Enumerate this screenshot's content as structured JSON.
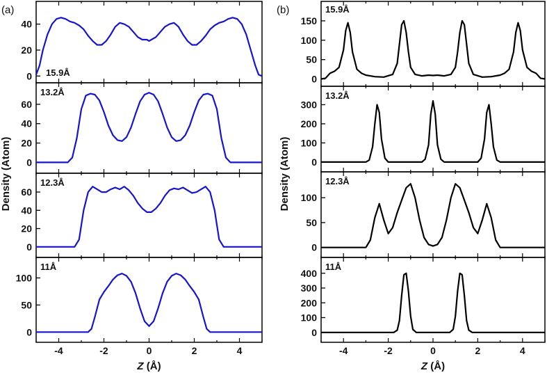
{
  "chart_data": [
    {
      "type": "line",
      "figure_label": "(a)",
      "xlabel_italic": "Z",
      "xlabel_rest": " (Å)",
      "ylabel": "Density (Atom)",
      "color": "#1414d2",
      "xlim": [
        -5,
        5
      ],
      "xticks": [
        "-4",
        "-2",
        "0",
        "2",
        "4"
      ],
      "panels": [
        {
          "label": "15.9Å",
          "ylim": [
            -2,
            50
          ],
          "yticks": [
            "0",
            "20",
            "40"
          ],
          "x": [
            -5,
            -4.85,
            -4.7,
            -4.5,
            -4.3,
            -4.1,
            -3.9,
            -3.7,
            -3.5,
            -3.3,
            -3.1,
            -2.9,
            -2.7,
            -2.5,
            -2.3,
            -2.1,
            -1.9,
            -1.7,
            -1.5,
            -1.3,
            -1.1,
            -0.9,
            -0.7,
            -0.5,
            -0.3,
            -0.1,
            0,
            0.1,
            0.3,
            0.5,
            0.7,
            0.9,
            1.1,
            1.3,
            1.5,
            1.7,
            1.9,
            2.1,
            2.3,
            2.5,
            2.7,
            2.9,
            3.1,
            3.3,
            3.5,
            3.7,
            3.9,
            4.1,
            4.3,
            4.5,
            4.7,
            4.85,
            5
          ],
          "y": [
            1,
            8,
            20,
            32,
            40,
            44,
            45,
            44,
            42,
            41,
            39,
            36,
            31,
            27,
            24,
            24,
            27,
            32,
            38,
            41,
            40,
            38,
            34,
            30,
            28,
            28,
            27,
            28,
            30,
            34,
            38,
            40,
            41,
            38,
            32,
            27,
            24,
            24,
            27,
            31,
            36,
            39,
            41,
            42,
            44,
            45,
            44,
            40,
            32,
            20,
            8,
            1,
            0
          ]
        },
        {
          "label": "13.2Å",
          "ylim": [
            -4,
            75
          ],
          "yticks": [
            "0",
            "20",
            "40",
            "60"
          ],
          "x": [
            -5,
            -3.6,
            -3.4,
            -3.2,
            -3.0,
            -2.8,
            -2.6,
            -2.4,
            -2.2,
            -2.0,
            -1.8,
            -1.6,
            -1.4,
            -1.2,
            -1.0,
            -0.8,
            -0.6,
            -0.4,
            -0.2,
            0,
            0.2,
            0.4,
            0.6,
            0.8,
            1.0,
            1.2,
            1.4,
            1.6,
            1.8,
            2.0,
            2.2,
            2.4,
            2.6,
            2.8,
            3.0,
            3.2,
            3.4,
            3.6,
            5
          ],
          "y": [
            0,
            0,
            5,
            25,
            55,
            69,
            71,
            70,
            64,
            52,
            38,
            28,
            23,
            22,
            26,
            36,
            50,
            63,
            70,
            72,
            70,
            63,
            50,
            36,
            26,
            22,
            23,
            28,
            38,
            52,
            64,
            70,
            71,
            69,
            55,
            25,
            5,
            0,
            0
          ]
        },
        {
          "label": "12.3Å",
          "ylim": [
            -4,
            73
          ],
          "yticks": [
            "0",
            "20",
            "40",
            "60"
          ],
          "x": [
            -5,
            -3.3,
            -3.1,
            -2.9,
            -2.7,
            -2.5,
            -2.3,
            -2.1,
            -1.9,
            -1.7,
            -1.5,
            -1.3,
            -1.1,
            -0.9,
            -0.7,
            -0.5,
            -0.3,
            -0.1,
            0.1,
            0.3,
            0.5,
            0.7,
            0.9,
            1.1,
            1.3,
            1.5,
            1.7,
            1.9,
            2.1,
            2.3,
            2.5,
            2.7,
            2.9,
            3.1,
            3.3,
            5
          ],
          "y": [
            0,
            0,
            8,
            40,
            60,
            66,
            63,
            60,
            60,
            63,
            65,
            63,
            66,
            62,
            56,
            48,
            42,
            38,
            38,
            42,
            48,
            56,
            62,
            64,
            63,
            65,
            62,
            59,
            60,
            63,
            66,
            60,
            40,
            8,
            0,
            0
          ]
        },
        {
          "label": "11Å",
          "ylim": [
            -6,
            125
          ],
          "yticks": [
            "0",
            "50",
            "100"
          ],
          "x": [
            -5,
            -2.7,
            -2.55,
            -2.4,
            -2.2,
            -2.0,
            -1.8,
            -1.6,
            -1.4,
            -1.2,
            -1.0,
            -0.8,
            -0.6,
            -0.4,
            -0.2,
            0,
            0.2,
            0.4,
            0.6,
            0.8,
            1.0,
            1.2,
            1.4,
            1.6,
            1.8,
            2.0,
            2.2,
            2.4,
            2.55,
            2.7,
            5
          ],
          "y": [
            0,
            0,
            6,
            28,
            60,
            74,
            85,
            97,
            105,
            108,
            104,
            93,
            72,
            44,
            20,
            11,
            20,
            44,
            72,
            93,
            104,
            108,
            105,
            97,
            85,
            74,
            60,
            28,
            6,
            0,
            0
          ]
        }
      ]
    },
    {
      "type": "line",
      "figure_label": "(b)",
      "xlabel_italic": "Z",
      "xlabel_rest": " (Å)",
      "ylabel": "Density (Atom)",
      "color": "#000000",
      "xlim": [
        -5,
        5
      ],
      "xticks": [
        "-4",
        "-2",
        "0",
        "2",
        "4"
      ],
      "panels": [
        {
          "label": "15.9Å",
          "ylim": [
            -8,
            175
          ],
          "yticks": [
            "0",
            "50",
            "100",
            "150"
          ],
          "x": [
            -5,
            -4.8,
            -4.6,
            -4.4,
            -4.2,
            -4.0,
            -3.9,
            -3.8,
            -3.7,
            -3.6,
            -3.4,
            -3.2,
            -3.0,
            -2.6,
            -2.2,
            -1.8,
            -1.6,
            -1.5,
            -1.4,
            -1.3,
            -1.2,
            -1.1,
            -1.0,
            -0.8,
            -0.5,
            -0.2,
            0,
            0.2,
            0.5,
            0.8,
            1.0,
            1.1,
            1.2,
            1.3,
            1.4,
            1.5,
            1.6,
            1.8,
            2.2,
            2.6,
            3.0,
            3.2,
            3.4,
            3.6,
            3.7,
            3.8,
            3.9,
            4.0,
            4.2,
            4.4,
            4.6,
            4.8,
            5
          ],
          "y": [
            0,
            2,
            15,
            20,
            30,
            75,
            125,
            145,
            120,
            70,
            25,
            15,
            10,
            6,
            5,
            12,
            40,
            90,
            140,
            150,
            120,
            70,
            30,
            12,
            8,
            10,
            9,
            10,
            8,
            12,
            30,
            70,
            120,
            150,
            140,
            90,
            40,
            12,
            5,
            6,
            10,
            15,
            25,
            70,
            120,
            145,
            125,
            75,
            30,
            20,
            15,
            2,
            0
          ]
        },
        {
          "label": "13.2Å",
          "ylim": [
            -15,
            360
          ],
          "yticks": [
            "0",
            "100",
            "200",
            "300"
          ],
          "x": [
            -5,
            -3.0,
            -2.85,
            -2.7,
            -2.6,
            -2.5,
            -2.4,
            -2.3,
            -2.15,
            -2.0,
            -0.5,
            -0.35,
            -0.2,
            -0.1,
            0,
            0.1,
            0.2,
            0.35,
            0.5,
            2.0,
            2.15,
            2.3,
            2.4,
            2.5,
            2.6,
            2.7,
            2.85,
            3.0,
            5
          ],
          "y": [
            0,
            0,
            10,
            80,
            200,
            300,
            260,
            120,
            20,
            0,
            0,
            15,
            90,
            250,
            320,
            250,
            90,
            15,
            0,
            0,
            20,
            120,
            260,
            300,
            200,
            80,
            10,
            0,
            0
          ]
        },
        {
          "label": "12.3Å",
          "ylim": [
            -6,
            138
          ],
          "yticks": [
            "0",
            "50",
            "100"
          ],
          "x": [
            -5,
            -3.0,
            -2.8,
            -2.6,
            -2.4,
            -2.2,
            -2.0,
            -1.8,
            -1.6,
            -1.4,
            -1.2,
            -1.0,
            -0.8,
            -0.6,
            -0.4,
            -0.2,
            0,
            0.2,
            0.4,
            0.6,
            0.8,
            1.0,
            1.2,
            1.4,
            1.6,
            1.8,
            2.0,
            2.2,
            2.4,
            2.6,
            2.8,
            3.0,
            5
          ],
          "y": [
            0,
            0,
            15,
            60,
            88,
            55,
            28,
            40,
            70,
            95,
            120,
            128,
            100,
            55,
            20,
            6,
            3,
            6,
            20,
            55,
            100,
            128,
            120,
            95,
            70,
            40,
            28,
            55,
            88,
            60,
            15,
            0,
            0
          ]
        },
        {
          "label": "11Å",
          "ylim": [
            -20,
            460
          ],
          "yticks": [
            "0",
            "100",
            "200",
            "300",
            "400"
          ],
          "x": [
            -5,
            -1.75,
            -1.6,
            -1.5,
            -1.4,
            -1.3,
            -1.2,
            -1.1,
            -1.0,
            -0.9,
            -0.75,
            0.75,
            0.9,
            1.0,
            1.1,
            1.2,
            1.3,
            1.4,
            1.5,
            1.6,
            1.75,
            5
          ],
          "y": [
            0,
            0,
            15,
            80,
            250,
            390,
            400,
            280,
            110,
            20,
            0,
            0,
            20,
            110,
            280,
            400,
            390,
            250,
            80,
            15,
            0,
            0
          ]
        }
      ]
    }
  ]
}
